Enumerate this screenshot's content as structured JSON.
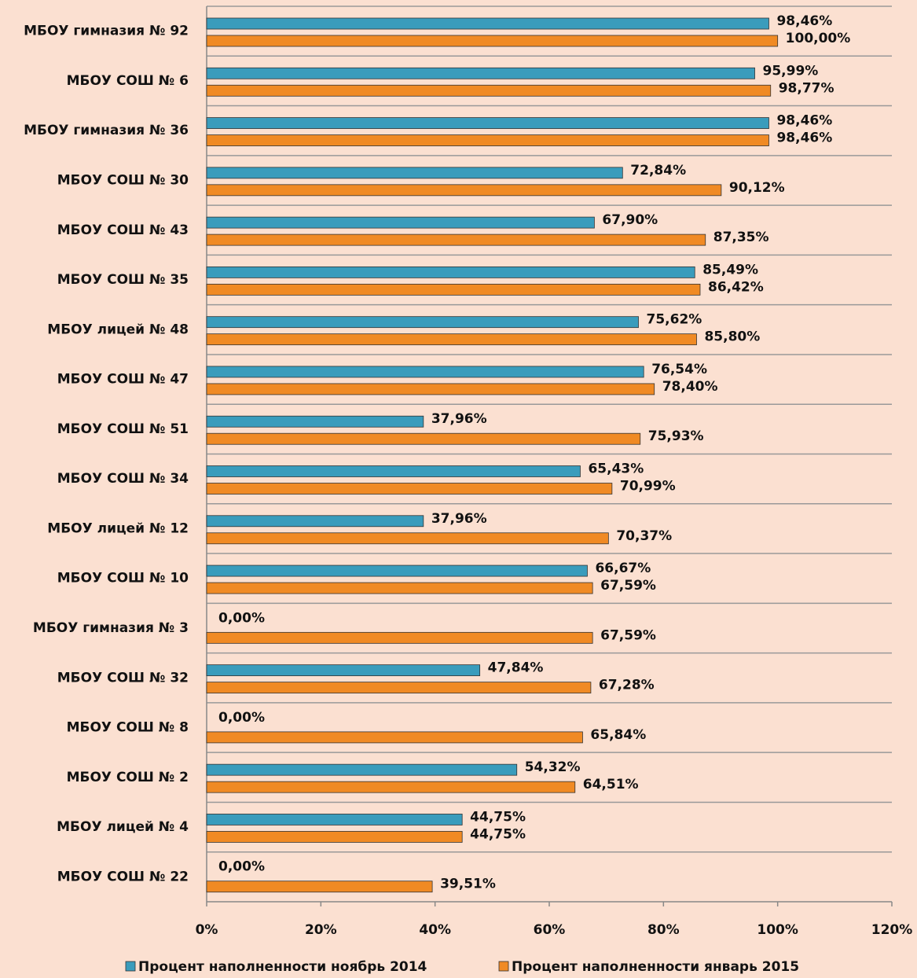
{
  "chart_data": {
    "type": "barh",
    "categories": [
      "МБОУ гимназия № 92",
      "МБОУ СОШ № 6",
      "МБОУ гимназия № 36",
      "МБОУ СОШ № 30",
      "МБОУ СОШ № 43",
      "МБОУ СОШ № 35",
      "МБОУ лицей № 48",
      "МБОУ СОШ № 47",
      "МБОУ СОШ № 51",
      "МБОУ СОШ № 34",
      "МБОУ лицей № 12",
      "МБОУ СОШ № 10",
      "МБОУ гимназия № 3",
      "МБОУ СОШ № 32",
      "МБОУ СОШ № 8",
      "МБОУ СОШ № 2",
      "МБОУ лицей № 4",
      "МБОУ СОШ № 22"
    ],
    "series": [
      {
        "name": "Процент наполненности ноябрь 2014",
        "color": "#3a9cbc",
        "values": [
          98.46,
          95.99,
          98.46,
          72.84,
          67.9,
          85.49,
          75.62,
          76.54,
          37.96,
          65.43,
          37.96,
          66.67,
          0,
          47.84,
          0,
          54.32,
          44.75,
          0
        ],
        "value_labels": [
          "98,46%",
          "95,99%",
          "98,46%",
          "72,84%",
          "67,90%",
          "85,49%",
          "75,62%",
          "76,54%",
          "37,96%",
          "65,43%",
          "37,96%",
          "66,67%",
          "0,00%",
          "47,84%",
          "0,00%",
          "54,32%",
          "44,75%",
          "0,00%"
        ]
      },
      {
        "name": "Процент наполненности январь 2015",
        "color": "#f08a24",
        "values": [
          100.0,
          98.77,
          98.46,
          90.12,
          87.35,
          86.42,
          85.8,
          78.4,
          75.93,
          70.99,
          70.37,
          67.59,
          67.59,
          67.28,
          65.84,
          64.51,
          44.75,
          39.51
        ],
        "value_labels": [
          "100,00%",
          "98,77%",
          "98,46%",
          "90,12%",
          "87,35%",
          "86,42%",
          "85,80%",
          "78,40%",
          "75,93%",
          "70,99%",
          "70,37%",
          "67,59%",
          "67,59%",
          "67,28%",
          "65,84%",
          "64,51%",
          "44,75%",
          "39,51%"
        ]
      }
    ],
    "xlim": [
      0,
      120
    ],
    "xticks": [
      {
        "value": 0,
        "label": "0%"
      },
      {
        "value": 20,
        "label": "20%"
      },
      {
        "value": 40,
        "label": "40%"
      },
      {
        "value": 60,
        "label": "60%"
      },
      {
        "value": 80,
        "label": "80%"
      },
      {
        "value": 100,
        "label": "100%"
      },
      {
        "value": 120,
        "label": "120%"
      }
    ],
    "grid": true,
    "legend": "bottom"
  }
}
